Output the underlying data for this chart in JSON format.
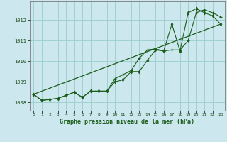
{
  "title": "Graphe pression niveau de la mer (hPa)",
  "background_color": "#cce8ee",
  "grid_color": "#99cccc",
  "line_color": "#1a5c1a",
  "x_ticks": [
    0,
    1,
    2,
    3,
    4,
    5,
    6,
    7,
    8,
    9,
    10,
    11,
    12,
    13,
    14,
    15,
    16,
    17,
    18,
    19,
    20,
    21,
    22,
    23
  ],
  "y_ticks": [
    1008,
    1009,
    1010,
    1011,
    1012
  ],
  "ylim": [
    1007.6,
    1012.9
  ],
  "xlim": [
    -0.5,
    23.5
  ],
  "series1_x": [
    0,
    1,
    2,
    3,
    4,
    5,
    6,
    7,
    8,
    9,
    10,
    11,
    12,
    13,
    14,
    15,
    16,
    17,
    18,
    19,
    20,
    21,
    22,
    23
  ],
  "series1_y": [
    1008.4,
    1008.1,
    1008.15,
    1008.2,
    1008.35,
    1008.5,
    1008.25,
    1008.55,
    1008.55,
    1008.55,
    1009.15,
    1009.35,
    1009.55,
    1010.15,
    1010.55,
    1010.6,
    1010.5,
    1010.55,
    1010.55,
    1011.0,
    1012.35,
    1012.5,
    1012.35,
    1012.15
  ],
  "series2_x": [
    0,
    1,
    2,
    3,
    4,
    5,
    6,
    7,
    8,
    9,
    10,
    11,
    12,
    13,
    14,
    15,
    16,
    17,
    18,
    19,
    20,
    21,
    22,
    23
  ],
  "series2_y": [
    1008.4,
    1008.1,
    1008.15,
    1008.2,
    1008.35,
    1008.5,
    1008.25,
    1008.55,
    1008.55,
    1008.55,
    1009.0,
    1009.1,
    1009.5,
    1009.5,
    1010.05,
    1010.55,
    1010.5,
    1011.8,
    1010.5,
    1012.35,
    1012.55,
    1012.35,
    1012.2,
    1011.8
  ],
  "series3_x": [
    0,
    23
  ],
  "series3_y": [
    1008.4,
    1011.8
  ]
}
